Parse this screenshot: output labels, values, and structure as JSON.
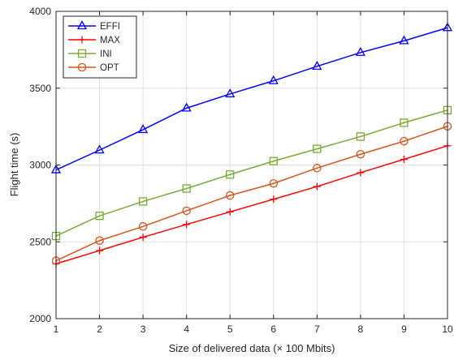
{
  "chart_data": {
    "type": "line",
    "xlabel": "Size of delivered data (× 100 Mbits)",
    "ylabel": "Flight time (s)",
    "x": [
      1,
      2,
      3,
      4,
      5,
      6,
      7,
      8,
      9,
      10
    ],
    "xlim": [
      1,
      10
    ],
    "ylim": [
      2000,
      4000
    ],
    "xticks": [
      1,
      2,
      3,
      4,
      5,
      6,
      7,
      8,
      9,
      10
    ],
    "yticks": [
      2000,
      2500,
      3000,
      3500,
      4000
    ],
    "grid": true,
    "legend_position": "top-left",
    "series": [
      {
        "name": "EFFI",
        "color": "#0000ff",
        "marker": "triangle",
        "values": [
          2968,
          3097,
          3230,
          3370,
          3462,
          3548,
          3642,
          3732,
          3808,
          3893
        ]
      },
      {
        "name": "MAX",
        "color": "#ff0000",
        "marker": "plus",
        "values": [
          2357,
          2443,
          2530,
          2613,
          2695,
          2777,
          2860,
          2950,
          3037,
          3125
        ]
      },
      {
        "name": "INI",
        "color": "#77ac30",
        "marker": "square",
        "values": [
          2538,
          2669,
          2763,
          2847,
          2938,
          3025,
          3105,
          3185,
          3275,
          3357
        ]
      },
      {
        "name": "OPT",
        "color": "#d95319",
        "marker": "circle",
        "values": [
          2377,
          2508,
          2600,
          2702,
          2802,
          2880,
          2980,
          3070,
          3155,
          3252
        ]
      }
    ]
  }
}
